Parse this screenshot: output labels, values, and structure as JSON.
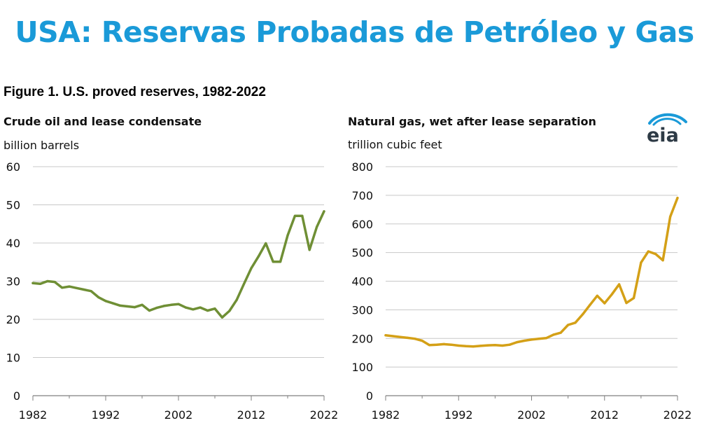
{
  "banner": "USA: Reservas Probadas de Petróleo y Gas",
  "figure_title": "Figure 1. U.S. proved reserves, 1982-2022",
  "logo_text": "eia",
  "chart_data": [
    {
      "type": "line",
      "title": "Crude oil and lease condensate",
      "ylabel": "billion barrels",
      "xlim": [
        1982,
        2022
      ],
      "ylim": [
        0,
        60
      ],
      "yticks": [
        0,
        10,
        20,
        30,
        40,
        50,
        60
      ],
      "xticks": [
        1982,
        1992,
        2002,
        2012,
        2022
      ],
      "grid": true,
      "color": "#6f8f35",
      "x": [
        1982,
        1983,
        1984,
        1985,
        1986,
        1987,
        1988,
        1989,
        1990,
        1991,
        1992,
        1993,
        1994,
        1995,
        1996,
        1997,
        1998,
        1999,
        2000,
        2001,
        2002,
        2003,
        2004,
        2005,
        2006,
        2007,
        2008,
        2009,
        2010,
        2011,
        2012,
        2013,
        2014,
        2015,
        2016,
        2017,
        2018,
        2019,
        2020,
        2021,
        2022
      ],
      "y": [
        29.5,
        29.3,
        30.0,
        29.8,
        28.3,
        28.6,
        28.2,
        27.8,
        27.4,
        25.8,
        24.8,
        24.2,
        23.6,
        23.4,
        23.2,
        23.8,
        22.3,
        23.0,
        23.5,
        23.8,
        24.0,
        23.1,
        22.6,
        23.1,
        22.3,
        22.8,
        20.5,
        22.2,
        25.1,
        29.3,
        33.4,
        36.5,
        39.9,
        35.1,
        35.1,
        42.0,
        47.1,
        47.1,
        38.2,
        44.2,
        48.3
      ]
    },
    {
      "type": "line",
      "title": "Natural gas, wet after lease separation",
      "ylabel": "trillion cubic feet",
      "xlim": [
        1982,
        2022
      ],
      "ylim": [
        0,
        800
      ],
      "yticks": [
        0,
        100,
        200,
        300,
        400,
        500,
        600,
        700,
        800
      ],
      "xticks": [
        1982,
        1992,
        2002,
        2012,
        2022
      ],
      "grid": true,
      "color": "#d4a017",
      "x": [
        1982,
        1983,
        1984,
        1985,
        1986,
        1987,
        1988,
        1989,
        1990,
        1991,
        1992,
        1993,
        1994,
        1995,
        1996,
        1997,
        1998,
        1999,
        2000,
        2001,
        2002,
        2003,
        2004,
        2005,
        2006,
        2007,
        2008,
        2009,
        2010,
        2011,
        2012,
        2013,
        2014,
        2015,
        2016,
        2017,
        2018,
        2019,
        2020,
        2021,
        2022
      ],
      "y": [
        211,
        208,
        205,
        202,
        199,
        192,
        177,
        178,
        180,
        178,
        175,
        173,
        172,
        174,
        176,
        177,
        175,
        178,
        187,
        192,
        196,
        199,
        201,
        213,
        220,
        247,
        255,
        284,
        317,
        349,
        323,
        354,
        389,
        324,
        341,
        465,
        504,
        495,
        473,
        625,
        691
      ]
    }
  ]
}
